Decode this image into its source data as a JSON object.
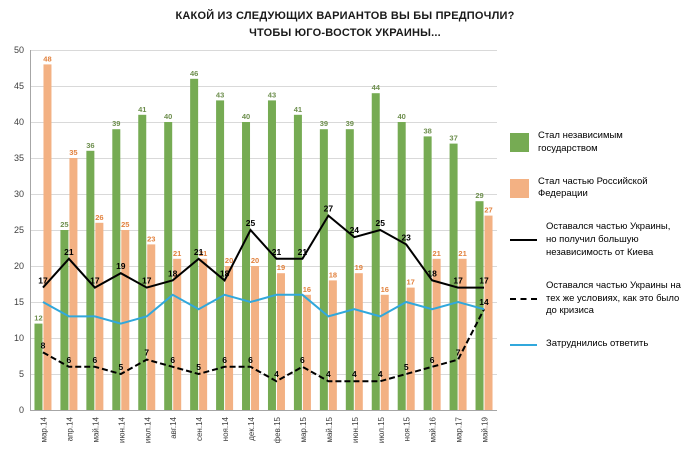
{
  "title": {
    "line1": "КАКОЙ ИЗ СЛЕДУЮЩИХ ВАРИАНТОВ ВЫ БЫ ПРЕДПОЧЛИ?",
    "line2": "ЧТОБЫ ЮГО-ВОСТОК УКРАИНЫ..."
  },
  "chart_data": {
    "type": "bar+line",
    "title": "КАКОЙ ИЗ СЛЕДУЮЩИХ ВАРИАНТОВ ВЫ БЫ ПРЕДПОЧЛИ? ЧТОБЫ ЮГО-ВОСТОК УКРАИНЫ...",
    "xlabel": "",
    "ylabel": "",
    "ylim": [
      0,
      50
    ],
    "ytick_step": 5,
    "grid": true,
    "legend_position": "right",
    "categories": [
      "мар.14",
      "апр.14",
      "май.14",
      "июн.14",
      "июл.14",
      "авг.14",
      "сен.14",
      "ноя.14",
      "дек.14",
      "фев.15",
      "мар.15",
      "май.15",
      "июн.15",
      "июл.15",
      "ноя.15",
      "май.16",
      "мар.17",
      "май.19"
    ],
    "series": [
      {
        "id": "independent",
        "name": "Стал независимым государством",
        "type": "bar",
        "color": "#76ab53",
        "label_color": "#6e8f4e",
        "values": [
          12,
          25,
          36,
          39,
          41,
          40,
          46,
          43,
          40,
          43,
          41,
          39,
          39,
          44,
          40,
          38,
          37,
          29
        ]
      },
      {
        "id": "russia",
        "name": "Стал частью Российской Федерации",
        "type": "bar",
        "color": "#f3b183",
        "label_color": "#e2823e",
        "values": [
          48,
          35,
          26,
          25,
          23,
          21,
          21,
          20,
          20,
          19,
          16,
          18,
          19,
          16,
          17,
          21,
          21,
          27
        ]
      },
      {
        "id": "autonomy",
        "name": "Оставался частью Украины, но получил большую независимость от Киева",
        "type": "line",
        "line_style": "solid",
        "color": "#000000",
        "labeled": true,
        "values": [
          17,
          21,
          17,
          19,
          17,
          18,
          21,
          18,
          25,
          21,
          21,
          27,
          24,
          25,
          23,
          18,
          17,
          17
        ]
      },
      {
        "id": "status-quo",
        "name": "Оставался частью Украины на тех же условиях, как это было до кризиса",
        "type": "line",
        "line_style": "dashed",
        "color": "#000000",
        "labeled": true,
        "values": [
          8,
          6,
          6,
          5,
          7,
          6,
          5,
          6,
          6,
          4,
          6,
          4,
          4,
          4,
          5,
          6,
          7,
          14
        ]
      },
      {
        "id": "undecided",
        "name": "Затруднились ответить",
        "type": "line",
        "line_style": "solid",
        "color": "#31a8dc",
        "labeled": false,
        "values": [
          15,
          13,
          13,
          12,
          13,
          16,
          14,
          16,
          15,
          16,
          16,
          13,
          14,
          13,
          15,
          14,
          15,
          14
        ]
      }
    ]
  }
}
